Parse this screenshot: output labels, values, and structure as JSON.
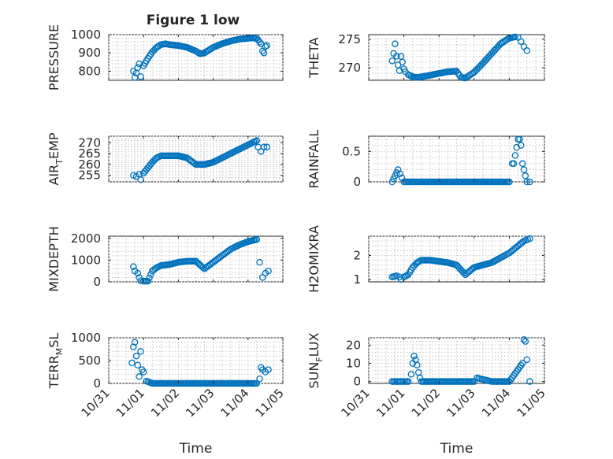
{
  "figure": {
    "title": "Figure 1 low"
  },
  "chart_data": [
    {
      "type": "scatter",
      "title": "Figure 1 low",
      "ylabel": "PRESSURE",
      "xlabel": "",
      "xlim": [
        "10/31",
        "11/05"
      ],
      "ylim": [
        750,
        1000
      ],
      "yticks": [
        "800",
        "900",
        "1000"
      ],
      "xticks": [
        "10/31",
        "11/01",
        "11/02",
        "11/03",
        "11/04",
        "11/05"
      ],
      "grid": true,
      "x": [
        "10/31 17:00",
        "10/31 18:00",
        "10/31 19:00",
        "10/31 20:00",
        "10/31 21:00",
        "10/31 22:00",
        "11/01 00:00",
        "11/01 03:00",
        "11/01 06:00",
        "11/01 09:00",
        "11/01 12:00",
        "11/01 15:00",
        "11/01 18:00",
        "11/02 00:00",
        "11/02 06:00",
        "11/02 12:00",
        "11/02 15:00",
        "11/02 18:00",
        "11/02 21:00",
        "11/03 00:00",
        "11/03 06:00",
        "11/03 12:00",
        "11/03 18:00",
        "11/04 00:00",
        "11/04 03:00",
        "11/04 06:00",
        "11/04 09:00",
        "11/04 10:00",
        "11/04 11:00",
        "11/04 12:00",
        "11/04 13:00"
      ],
      "y": [
        800,
        765,
        790,
        820,
        840,
        770,
        830,
        870,
        905,
        930,
        945,
        950,
        945,
        940,
        930,
        910,
        895,
        900,
        915,
        930,
        950,
        965,
        975,
        980,
        982,
        980,
        950,
        910,
        900,
        935,
        940
      ]
    },
    {
      "type": "scatter",
      "ylabel": "THETA",
      "xlabel": "",
      "xlim": [
        "10/31",
        "11/05"
      ],
      "ylim": [
        267.8,
        275.8
      ],
      "yticks": [
        "270",
        "275"
      ],
      "xticks": [
        "10/31",
        "11/01",
        "11/02",
        "11/03",
        "11/04",
        "11/05"
      ],
      "grid": true,
      "x": [
        "10/31 16:00",
        "10/31 17:00",
        "10/31 18:00",
        "10/31 19:00",
        "10/31 20:00",
        "10/31 21:00",
        "10/31 22:00",
        "10/31 23:00",
        "11/01 00:00",
        "11/01 01:00",
        "11/01 03:00",
        "11/01 06:00",
        "11/01 09:00",
        "11/01 12:00",
        "11/01 18:00",
        "11/02 00:00",
        "11/02 06:00",
        "11/02 12:00",
        "11/02 15:00",
        "11/02 18:00",
        "11/03 00:00",
        "11/03 06:00",
        "11/03 12:00",
        "11/03 18:00",
        "11/04 00:00",
        "11/04 04:00",
        "11/04 06:00",
        "11/04 08:00",
        "11/04 10:00",
        "11/04 12:00"
      ],
      "y": [
        271.2,
        272.5,
        274.2,
        272,
        270.5,
        269.5,
        272,
        271,
        269.8,
        269.3,
        268.8,
        268.4,
        268.3,
        268.4,
        268.7,
        269,
        269.3,
        269.4,
        268.3,
        268.2,
        269.2,
        270.8,
        272.5,
        274.2,
        275.2,
        275.4,
        275.3,
        274.6,
        273.7,
        273
      ]
    },
    {
      "type": "scatter",
      "ylabel": "AIR_TEMP",
      "xlabel": "",
      "xlim": [
        "10/31",
        "11/05"
      ],
      "ylim": [
        252,
        273
      ],
      "yticks": [
        "255",
        "260",
        "265",
        "270"
      ],
      "xticks": [
        "10/31",
        "11/01",
        "11/02",
        "11/03",
        "11/04",
        "11/05"
      ],
      "grid": true,
      "x": [
        "10/31 17:00",
        "10/31 19:00",
        "10/31 21:00",
        "10/31 22:00",
        "11/01 00:00",
        "11/01 03:00",
        "11/01 06:00",
        "11/01 09:00",
        "11/01 12:00",
        "11/01 18:00",
        "11/02 00:00",
        "11/02 06:00",
        "11/02 12:00",
        "11/02 18:00",
        "11/03 00:00",
        "11/03 06:00",
        "11/03 12:00",
        "11/03 18:00",
        "11/04 00:00",
        "11/04 06:00",
        "11/04 07:00",
        "11/04 09:00",
        "11/04 11:00",
        "11/04 13:00"
      ],
      "y": [
        255,
        254.5,
        255.5,
        253,
        256,
        258.5,
        261,
        263,
        264,
        264,
        264,
        263,
        260,
        260,
        261,
        263,
        265,
        267,
        269,
        271,
        268,
        266,
        268,
        268
      ]
    },
    {
      "type": "scatter",
      "ylabel": "RAINFALL",
      "xlabel": "",
      "xlim": [
        "10/31",
        "11/05"
      ],
      "ylim": [
        0,
        0.75
      ],
      "yticks": [
        "0",
        "0.5"
      ],
      "xticks": [
        "10/31",
        "11/01",
        "11/02",
        "11/03",
        "11/04",
        "11/05"
      ],
      "grid": true,
      "x": [
        "10/31 16:00",
        "10/31 20:00",
        "11/01 00:00",
        "11/01 06:00",
        "11/01 12:00",
        "11/02 00:00",
        "11/02 12:00",
        "11/03 00:00",
        "11/03 12:00",
        "11/04 00:00",
        "11/04 02:00",
        "11/04 03:00",
        "11/04 06:00",
        "11/04 07:00",
        "11/04 08:00",
        "11/04 09:00",
        "11/04 12:00",
        "11/04 14:00"
      ],
      "y": [
        0,
        0.2,
        0,
        0,
        0,
        0,
        0,
        0,
        0,
        0,
        0.3,
        0.3,
        0.7,
        0.7,
        0.6,
        0.3,
        0,
        0
      ]
    },
    {
      "type": "scatter",
      "ylabel": "MIXDEPTH",
      "xlabel": "",
      "xlim": [
        "10/31",
        "11/05"
      ],
      "ylim": [
        0,
        2100
      ],
      "yticks": [
        "0",
        "1000",
        "2000"
      ],
      "xticks": [
        "10/31",
        "11/01",
        "11/02",
        "11/03",
        "11/04",
        "11/05"
      ],
      "grid": true,
      "x": [
        "10/31 17:00",
        "10/31 18:00",
        "10/31 20:00",
        "10/31 21:00",
        "10/31 22:00",
        "11/01 00:00",
        "11/01 03:00",
        "11/01 06:00",
        "11/01 09:00",
        "11/01 12:00",
        "11/01 18:00",
        "11/02 00:00",
        "11/02 06:00",
        "11/02 12:00",
        "11/02 18:00",
        "11/03 00:00",
        "11/03 06:00",
        "11/03 12:00",
        "11/03 18:00",
        "11/04 00:00",
        "11/04 03:00",
        "11/04 06:00",
        "11/04 08:00",
        "11/04 10:00",
        "11/04 12:00",
        "11/04 14:00"
      ],
      "y": [
        700,
        500,
        400,
        200,
        50,
        30,
        30,
        500,
        650,
        750,
        800,
        900,
        950,
        950,
        600,
        900,
        1200,
        1500,
        1700,
        1850,
        1900,
        1950,
        900,
        200,
        400,
        500
      ]
    },
    {
      "type": "scatter",
      "ylabel": "H2OMIXRA",
      "xlabel": "",
      "xlim": [
        "10/31",
        "11/05"
      ],
      "ylim": [
        0.9,
        2.8
      ],
      "yticks": [
        "1",
        "2"
      ],
      "xticks": [
        "10/31",
        "11/01",
        "11/02",
        "11/03",
        "11/04",
        "11/05"
      ],
      "grid": true,
      "x": [
        "10/31 16:00",
        "10/31 19:00",
        "10/31 21:00",
        "10/31 22:00",
        "11/01 00:00",
        "11/01 03:00",
        "11/01 06:00",
        "11/01 09:00",
        "11/01 12:00",
        "11/01 18:00",
        "11/02 00:00",
        "11/02 06:00",
        "11/02 12:00",
        "11/02 18:00",
        "11/03 00:00",
        "11/03 06:00",
        "11/03 12:00",
        "11/03 18:00",
        "11/04 00:00",
        "11/04 06:00",
        "11/04 10:00",
        "11/04 14:00"
      ],
      "y": [
        1.1,
        1.15,
        1.1,
        1.0,
        1.1,
        1.2,
        1.5,
        1.7,
        1.8,
        1.8,
        1.75,
        1.7,
        1.6,
        1.2,
        1.5,
        1.6,
        1.7,
        1.9,
        2.1,
        2.4,
        2.6,
        2.7
      ]
    },
    {
      "type": "scatter",
      "ylabel": "TERR_MSL",
      "xlabel": "Time",
      "xlim": [
        "10/31",
        "11/05"
      ],
      "ylim": [
        0,
        1000
      ],
      "yticks": [
        "0",
        "500",
        "1000"
      ],
      "xticks": [
        "10/31",
        "11/01",
        "11/02",
        "11/03",
        "11/04",
        "11/05"
      ],
      "grid": true,
      "x": [
        "10/31 16:00",
        "10/31 17:00",
        "10/31 18:00",
        "10/31 19:00",
        "10/31 20:00",
        "10/31 21:00",
        "10/31 22:00",
        "10/31 23:00",
        "11/01 00:00",
        "11/01 02:00",
        "11/01 06:00",
        "11/01 12:00",
        "11/02 00:00",
        "11/02 12:00",
        "11/03 00:00",
        "11/03 12:00",
        "11/04 00:00",
        "11/04 06:00",
        "11/04 08:00",
        "11/04 09:00",
        "11/04 10:00",
        "11/04 12:00",
        "11/04 14:00"
      ],
      "y": [
        450,
        800,
        900,
        600,
        400,
        150,
        700,
        300,
        250,
        50,
        0,
        0,
        0,
        0,
        0,
        0,
        0,
        0,
        100,
        350,
        300,
        250,
        300
      ]
    },
    {
      "type": "scatter",
      "ylabel": "SUN_FLUX",
      "xlabel": "Time",
      "xlim": [
        "10/31",
        "11/05"
      ],
      "ylim": [
        -1,
        24
      ],
      "yticks": [
        "0",
        "10",
        "20"
      ],
      "xticks": [
        "10/31",
        "11/01",
        "11/02",
        "11/03",
        "11/04",
        "11/05"
      ],
      "grid": true,
      "x": [
        "10/31 16:00",
        "10/31 20:00",
        "11/01 00:00",
        "11/01 03:00",
        "11/01 05:00",
        "11/01 06:00",
        "11/01 07:00",
        "11/01 08:00",
        "11/01 09:00",
        "11/01 10:00",
        "11/01 11:00",
        "11/01 12:00",
        "11/01 18:00",
        "11/02 00:00",
        "11/02 12:00",
        "11/03 00:00",
        "11/03 02:00",
        "11/03 12:00",
        "11/04 00:00",
        "11/04 09:00",
        "11/04 10:00",
        "11/04 11:00",
        "11/04 12:00",
        "11/04 14:00"
      ],
      "y": [
        0,
        0,
        0,
        0,
        4,
        10,
        14,
        12,
        9,
        5,
        2,
        0,
        0,
        0,
        0,
        0,
        2,
        0,
        0,
        10,
        23,
        22,
        12,
        0
      ]
    }
  ]
}
